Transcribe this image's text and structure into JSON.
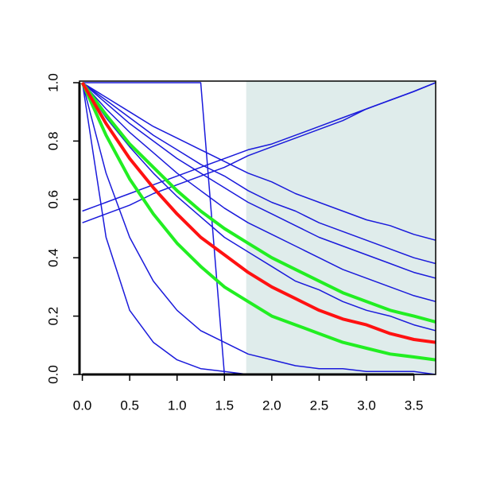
{
  "chart_data": {
    "type": "line",
    "x": [
      0,
      0.25,
      0.5,
      0.75,
      1,
      1.25,
      1.5,
      1.75,
      2,
      2.25,
      2.5,
      2.75,
      3,
      3.25,
      3.5,
      3.73
    ],
    "xlim": [
      -0.03,
      3.73
    ],
    "ylim": [
      0,
      1
    ],
    "xticks": [
      {
        "value": 0,
        "label": "0.0"
      },
      {
        "value": 0.5,
        "label": "0.5"
      },
      {
        "value": 1,
        "label": "1.0"
      },
      {
        "value": 1.5,
        "label": "1.5"
      },
      {
        "value": 2,
        "label": "2.0"
      },
      {
        "value": 2.5,
        "label": "2.5"
      },
      {
        "value": 3,
        "label": "3.0"
      },
      {
        "value": 3.5,
        "label": "3.5"
      }
    ],
    "yticks": [
      {
        "value": 0,
        "label": "0.0"
      },
      {
        "value": 0.2,
        "label": "0.2"
      },
      {
        "value": 0.4,
        "label": "0.4"
      },
      {
        "value": 0.6,
        "label": "0.6"
      },
      {
        "value": 0.8,
        "label": "0.8"
      },
      {
        "value": 1,
        "label": "1.0"
      }
    ],
    "shaded_region": [
      1.73,
      3.73
    ],
    "shaded_color": "#dfeceb",
    "series": [
      {
        "color": "#1a1adb",
        "line_width": 1.5,
        "values": [
          1,
          0.95,
          0.9,
          0.85,
          0.81,
          0.77,
          0.73,
          0.69,
          0.66,
          0.62,
          0.59,
          0.56,
          0.53,
          0.51,
          0.48,
          0.46
        ]
      },
      {
        "color": "#1a1adb",
        "line_width": 1.5,
        "values": [
          1,
          0.94,
          0.88,
          0.82,
          0.77,
          0.72,
          0.68,
          0.63,
          0.59,
          0.56,
          0.52,
          0.49,
          0.46,
          0.43,
          0.4,
          0.38
        ]
      },
      {
        "color": "#1a1adb",
        "line_width": 1.5,
        "values": [
          1,
          0.93,
          0.86,
          0.8,
          0.74,
          0.69,
          0.64,
          0.59,
          0.55,
          0.51,
          0.47,
          0.44,
          0.41,
          0.38,
          0.35,
          0.33
        ]
      },
      {
        "color": "#1a1adb",
        "line_width": 1.5,
        "values": [
          1,
          0.91,
          0.83,
          0.76,
          0.69,
          0.63,
          0.57,
          0.52,
          0.48,
          0.44,
          0.4,
          0.36,
          0.33,
          0.3,
          0.27,
          0.25
        ]
      },
      {
        "color": "#1a1adb",
        "line_width": 1.5,
        "values": [
          1,
          0.88,
          0.78,
          0.69,
          0.61,
          0.54,
          0.47,
          0.42,
          0.37,
          0.32,
          0.29,
          0.25,
          0.22,
          0.2,
          0.17,
          0.15
        ]
      },
      {
        "color": "#1a1adb",
        "line_width": 1.5,
        "values": [
          1,
          0.69,
          0.47,
          0.32,
          0.22,
          0.15,
          0.11,
          0.07,
          0.05,
          0.03,
          0.02,
          0.02,
          0.01,
          0.01,
          0.01,
          0
        ]
      },
      {
        "color": "#1a1adb",
        "line_width": 1.5,
        "values": [
          1,
          0.47,
          0.22,
          0.11,
          0.05,
          0.02,
          0.01,
          0,
          0,
          0,
          0,
          0,
          0,
          0,
          0,
          0
        ]
      },
      {
        "color": "#1a1adb",
        "line_width": 1.5,
        "values": [
          1,
          1,
          1,
          1,
          1,
          1,
          0,
          0,
          0,
          0,
          0,
          0,
          0,
          0,
          0,
          0
        ]
      },
      {
        "color": "#1a1adb",
        "line_width": 1.5,
        "values": [
          0.52,
          0.55,
          0.58,
          0.62,
          0.65,
          0.68,
          0.71,
          0.75,
          0.78,
          0.81,
          0.84,
          0.87,
          0.91,
          0.94,
          0.97,
          1.0
        ]
      },
      {
        "color": "#1a1adb",
        "line_width": 1.5,
        "values": [
          0.56,
          0.59,
          0.62,
          0.65,
          0.68,
          0.71,
          0.74,
          0.77,
          0.79,
          0.82,
          0.85,
          0.88,
          0.91,
          0.94,
          0.97,
          1.0
        ]
      },
      {
        "color": "#22ee22",
        "line_width": 4,
        "values": [
          1,
          0.89,
          0.79,
          0.71,
          0.63,
          0.56,
          0.5,
          0.45,
          0.4,
          0.36,
          0.32,
          0.28,
          0.25,
          0.22,
          0.2,
          0.18
        ]
      },
      {
        "color": "#22ee22",
        "line_width": 4,
        "values": [
          1,
          0.82,
          0.67,
          0.55,
          0.45,
          0.37,
          0.3,
          0.25,
          0.2,
          0.17,
          0.14,
          0.11,
          0.09,
          0.07,
          0.06,
          0.05
        ]
      },
      {
        "color": "#ff1111",
        "line_width": 4,
        "values": [
          1,
          0.86,
          0.74,
          0.64,
          0.55,
          0.47,
          0.41,
          0.35,
          0.3,
          0.26,
          0.22,
          0.19,
          0.17,
          0.14,
          0.12,
          0.11
        ]
      }
    ]
  }
}
